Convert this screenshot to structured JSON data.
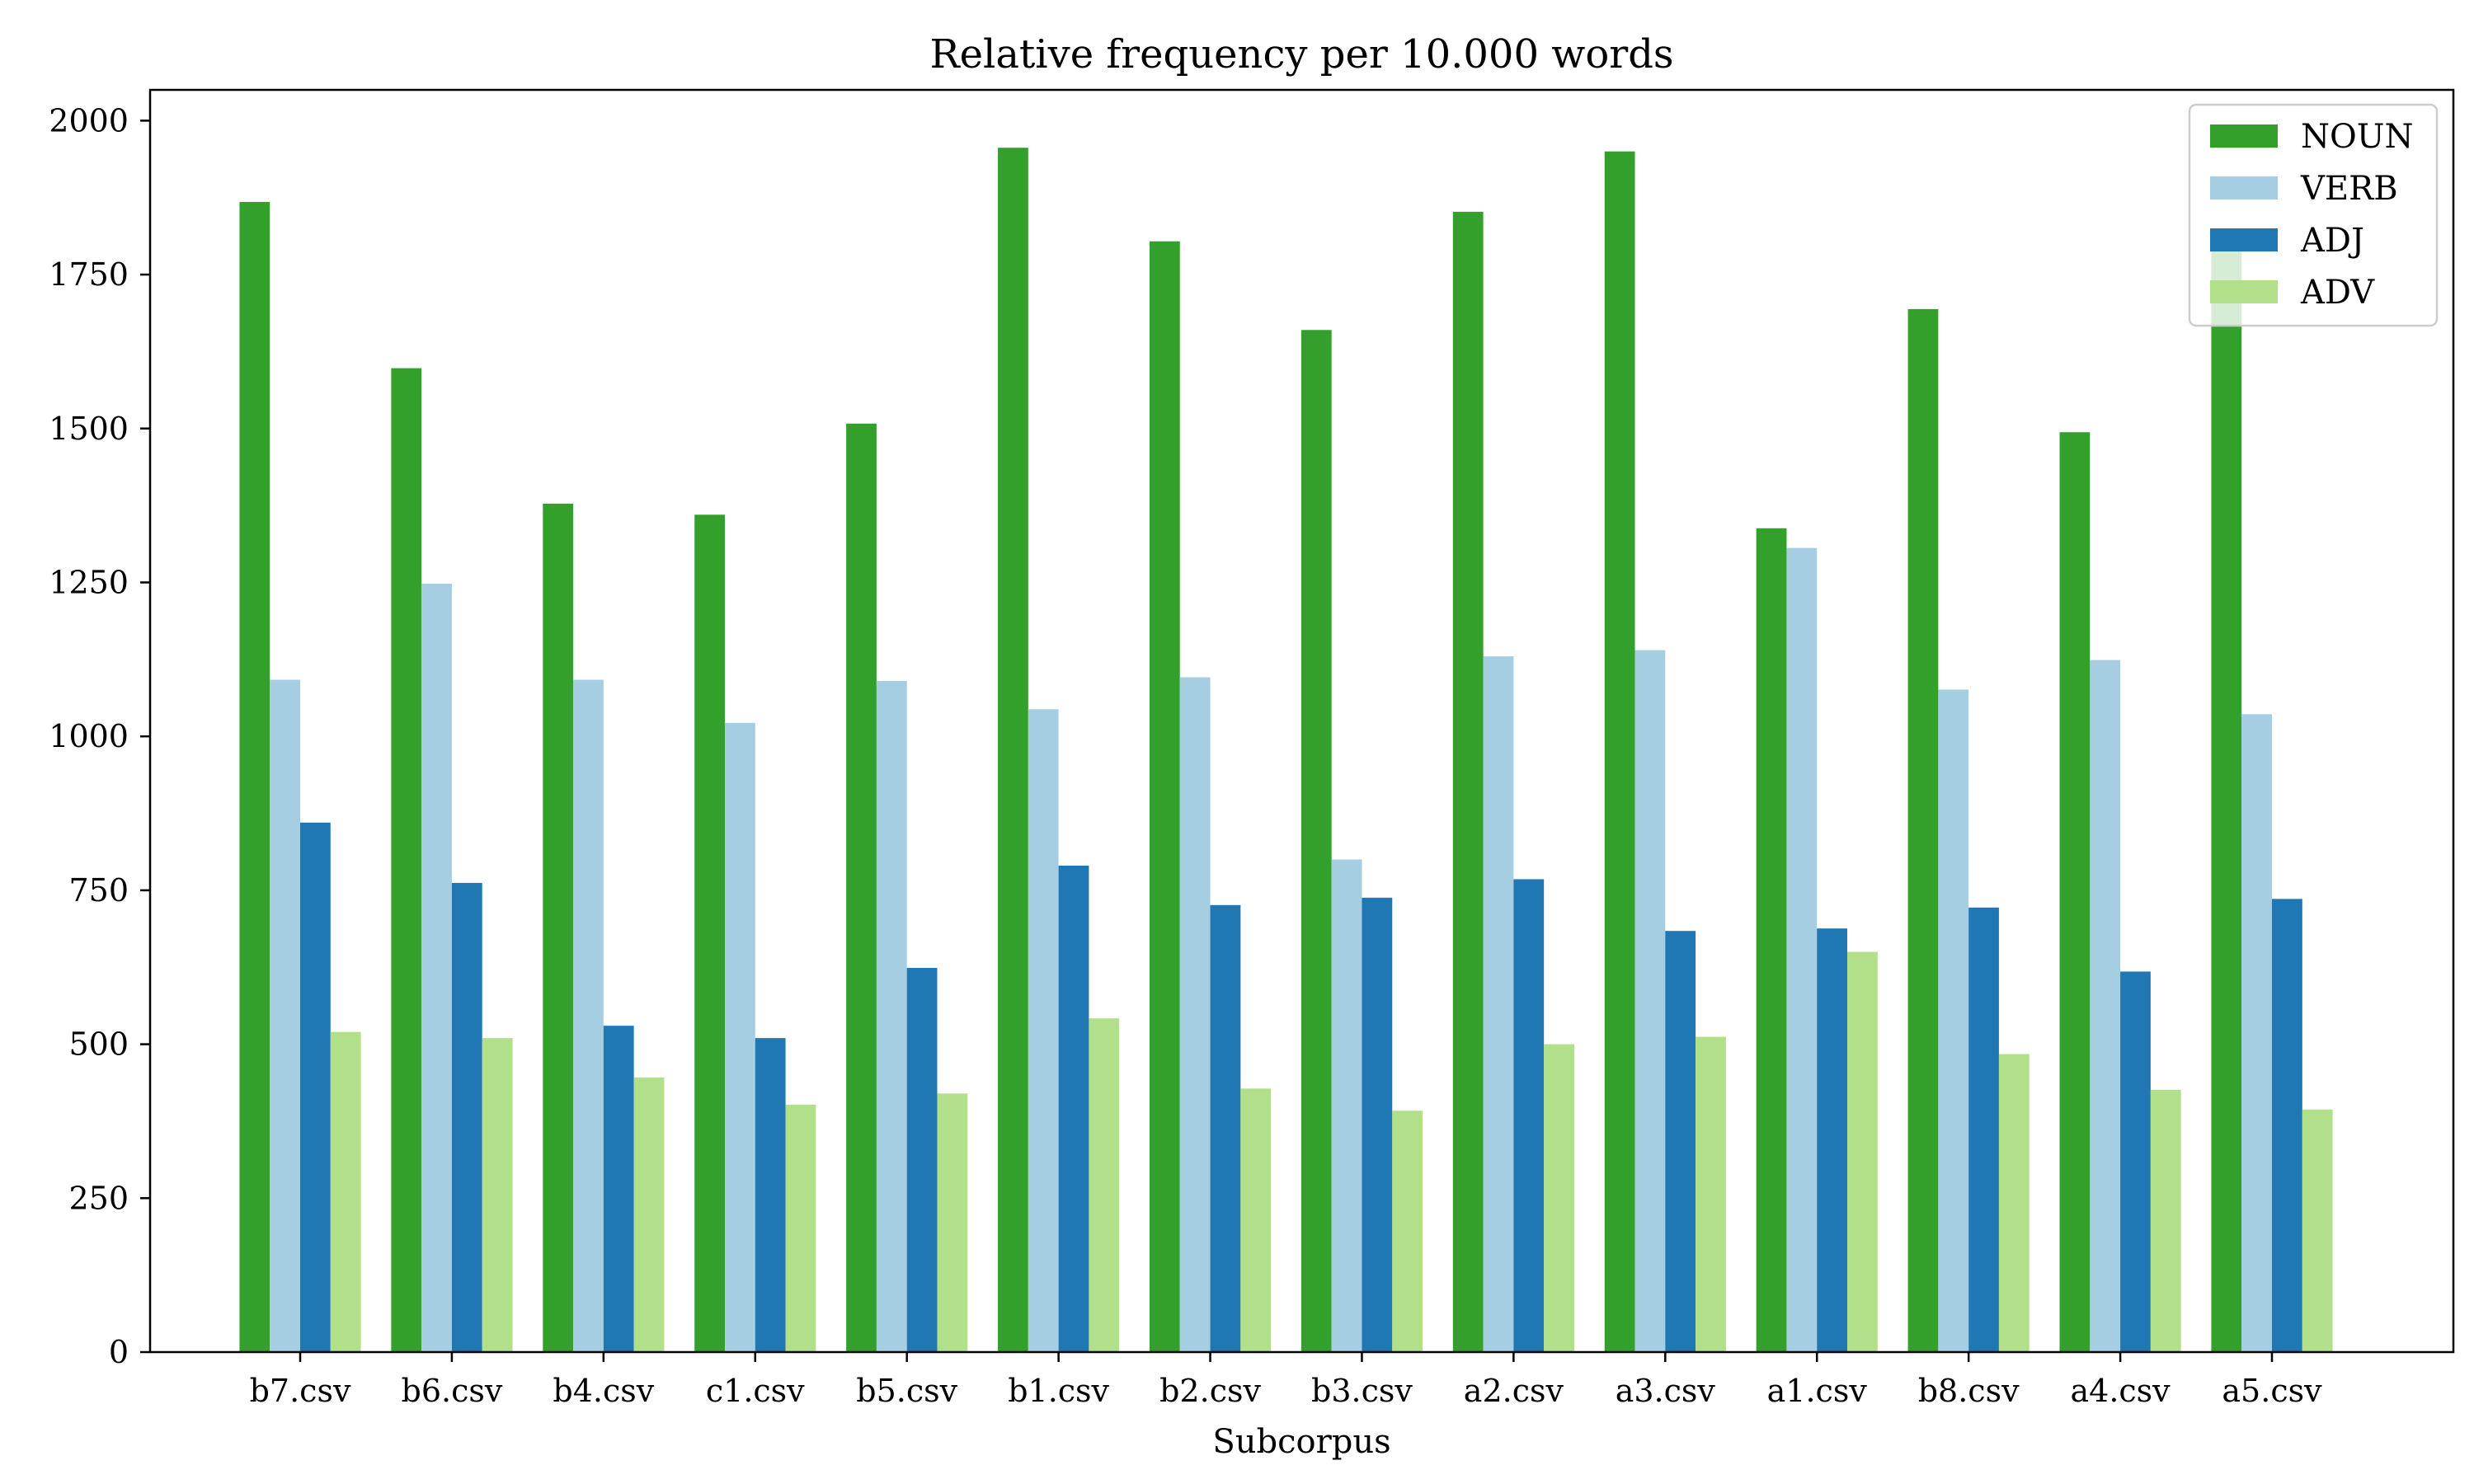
{
  "chart_data": {
    "type": "bar",
    "title": "Relative frequency per 10.000 words",
    "xlabel": "Subcorpus",
    "ylabel": "",
    "ylim": [
      0,
      2050
    ],
    "yticks": [
      0,
      250,
      500,
      750,
      1000,
      1250,
      1500,
      1750,
      2000
    ],
    "categories": [
      "b7.csv",
      "b6.csv",
      "b4.csv",
      "c1.csv",
      "b5.csv",
      "b1.csv",
      "b2.csv",
      "b3.csv",
      "a2.csv",
      "a3.csv",
      "a1.csv",
      "b8.csv",
      "a4.csv",
      "a5.csv"
    ],
    "series": [
      {
        "name": "NOUN",
        "color": "#33a02c",
        "values": [
          1868,
          1598,
          1378,
          1360,
          1508,
          1956,
          1804,
          1660,
          1852,
          1950,
          1338,
          1694,
          1494,
          1804
        ]
      },
      {
        "name": "VERB",
        "color": "#a6cee3",
        "values": [
          1092,
          1248,
          1092,
          1022,
          1090,
          1044,
          1096,
          800,
          1130,
          1140,
          1306,
          1076,
          1124,
          1036
        ]
      },
      {
        "name": "ADJ",
        "color": "#1f78b4",
        "values": [
          860,
          762,
          530,
          510,
          624,
          790,
          726,
          738,
          768,
          684,
          688,
          722,
          618,
          736
        ]
      },
      {
        "name": "ADV",
        "color": "#b2df8a",
        "values": [
          520,
          510,
          446,
          402,
          420,
          542,
          428,
          392,
          500,
          512,
          650,
          484,
          426,
          394
        ]
      }
    ],
    "grid": false,
    "legend_position": "top-right"
  }
}
